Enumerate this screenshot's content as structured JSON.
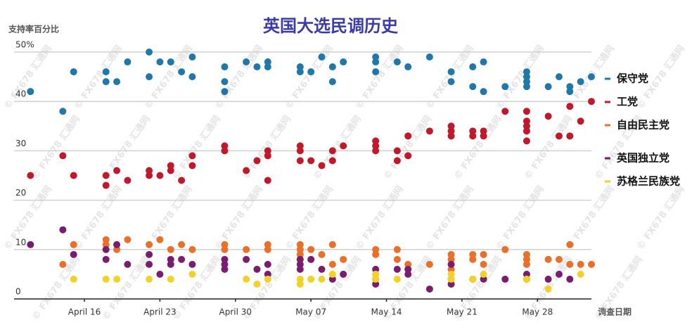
{
  "chart_data": {
    "type": "scatter",
    "title": "英国大选民调历史",
    "y_label": "支持率百分比",
    "x_label": "调查日期",
    "watermark": "© FX678 汇通网",
    "xlim": [
      10,
      63
    ],
    "xticks": [
      {
        "value": 16,
        "label": "April 16"
      },
      {
        "value": 23,
        "label": "April 23"
      },
      {
        "value": 30,
        "label": "April 30"
      },
      {
        "value": 37,
        "label": "May 07"
      },
      {
        "value": 44,
        "label": "May 14"
      },
      {
        "value": 51,
        "label": "May 21"
      },
      {
        "value": 58,
        "label": "May 28"
      }
    ],
    "ylim": [
      0,
      50
    ],
    "yticks": [
      0,
      10,
      20,
      30,
      40,
      {
        "value": 50,
        "label": "50%"
      }
    ],
    "grid": true,
    "legend": "right",
    "series": [
      {
        "name": "保守党",
        "color": "#1f78a8",
        "x": [
          11,
          14,
          15,
          18,
          18,
          19,
          20,
          22,
          22,
          23,
          24,
          25,
          26,
          26,
          29,
          29,
          29,
          31,
          32,
          33,
          33,
          36,
          36,
          37,
          38,
          39,
          39,
          40,
          43,
          43,
          43,
          45,
          46,
          48,
          50,
          50,
          52,
          52,
          53,
          53,
          55,
          57,
          57,
          57,
          57,
          59,
          60,
          61,
          61,
          62,
          63
        ],
        "values": [
          42,
          38,
          46,
          46,
          44,
          44,
          48,
          50,
          45,
          48,
          48,
          46,
          49,
          45,
          47,
          44,
          42,
          48,
          47,
          48,
          47,
          47,
          46,
          46,
          49,
          47,
          44,
          48,
          49,
          48,
          46,
          48,
          47,
          49,
          46,
          44,
          47,
          43,
          48,
          42,
          43,
          46,
          45,
          44,
          43,
          43,
          45,
          43,
          42,
          44,
          45
        ]
      },
      {
        "name": "工党",
        "color": "#c0192c",
        "x": [
          11,
          14,
          15,
          18,
          18,
          19,
          20,
          22,
          22,
          23,
          24,
          24,
          25,
          26,
          26,
          29,
          29,
          31,
          32,
          33,
          33,
          33,
          36,
          36,
          36,
          37,
          38,
          39,
          39,
          40,
          43,
          43,
          43,
          45,
          45,
          46,
          46,
          48,
          50,
          50,
          50,
          52,
          52,
          53,
          53,
          55,
          57,
          57,
          57,
          57,
          57,
          59,
          60,
          61,
          61,
          62,
          63
        ],
        "values": [
          25,
          29,
          25,
          25,
          23,
          26,
          24,
          26,
          25,
          25,
          27,
          26,
          24,
          29,
          27,
          31,
          30,
          26,
          28,
          30,
          29,
          24,
          31,
          30,
          28,
          28,
          27,
          30,
          28,
          31,
          32,
          31,
          30,
          30,
          28,
          33,
          29,
          34,
          35,
          34,
          33,
          34,
          33,
          34,
          33,
          38,
          38,
          36,
          35,
          34,
          32,
          37,
          33,
          39,
          33,
          36,
          40
        ]
      },
      {
        "name": "自由民主党",
        "color": "#e8702a",
        "x": [
          14,
          15,
          18,
          18,
          19,
          20,
          22,
          23,
          24,
          25,
          26,
          29,
          29,
          31,
          33,
          33,
          36,
          36,
          36,
          37,
          38,
          39,
          39,
          40,
          43,
          43,
          45,
          45,
          46,
          46,
          48,
          50,
          50,
          50,
          52,
          52,
          53,
          53,
          55,
          57,
          57,
          57,
          59,
          60,
          61,
          61,
          62,
          63
        ],
        "values": [
          7,
          11,
          12,
          11,
          10,
          12,
          11,
          12,
          10,
          11,
          10,
          11,
          10,
          10,
          11,
          10,
          11,
          10,
          9,
          10,
          9,
          11,
          7,
          8,
          10,
          9,
          10,
          8,
          7,
          6,
          7,
          9,
          8,
          6,
          9,
          8,
          9,
          7,
          10,
          9,
          8,
          7,
          8,
          8,
          11,
          7,
          7,
          7
        ]
      },
      {
        "name": "英国独立党",
        "color": "#7b1d6f",
        "x": [
          11,
          14,
          15,
          18,
          18,
          19,
          20,
          22,
          22,
          23,
          24,
          24,
          25,
          26,
          29,
          29,
          29,
          31,
          32,
          33,
          33,
          36,
          36,
          36,
          37,
          38,
          39,
          40,
          43,
          43,
          43,
          45,
          46,
          46,
          48,
          50,
          50,
          50,
          52,
          53,
          55,
          57,
          57,
          59,
          60,
          61
        ],
        "values": [
          11,
          14,
          9,
          10,
          8,
          11,
          7,
          9,
          7,
          5,
          8,
          7,
          8,
          7,
          8,
          7,
          6,
          8,
          6,
          7,
          5,
          8,
          7,
          6,
          8,
          6,
          4,
          5,
          6,
          4,
          3,
          6,
          6,
          5,
          2,
          7,
          4,
          3,
          4,
          4,
          4,
          5,
          4,
          4,
          5,
          4
        ]
      },
      {
        "name": "苏格兰民族党",
        "color": "#f2d12b",
        "x": [
          15,
          18,
          19,
          22,
          24,
          26,
          31,
          32,
          33,
          36,
          36,
          37,
          38,
          39,
          43,
          43,
          45,
          50,
          50,
          52,
          53,
          57,
          59,
          62
        ],
        "values": [
          4,
          4,
          4,
          4,
          4,
          5,
          4,
          3,
          4,
          4,
          3,
          4,
          4,
          5,
          5,
          4,
          4,
          5,
          4,
          4,
          5,
          4,
          2,
          5
        ]
      }
    ]
  }
}
